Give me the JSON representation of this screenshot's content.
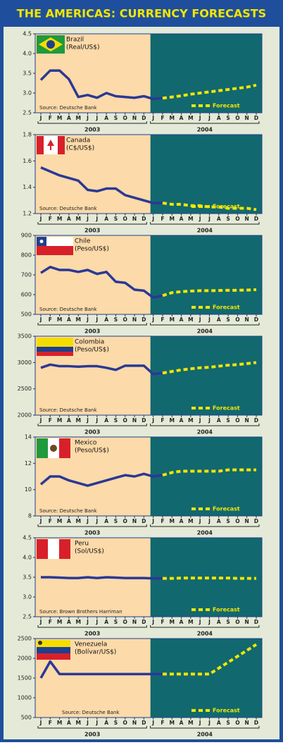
{
  "title": "THE AMERICAS: CURRENCY FORECASTS",
  "chart_data": [
    {
      "type": "line",
      "title": "Brazil",
      "subtitle": "(Real/US$)",
      "source": "Source: Deutsche Bank",
      "categories": [
        "J",
        "F",
        "M",
        "A",
        "M",
        "J",
        "J",
        "A",
        "S",
        "O",
        "N",
        "D",
        "J",
        "F",
        "M",
        "A",
        "M",
        "J",
        "J",
        "A",
        "S",
        "O",
        "N",
        "D"
      ],
      "year_groups": [
        "2003",
        "2004"
      ],
      "ylim": [
        2.5,
        4.5
      ],
      "yticks": [
        2.5,
        {
          "value": 3,
          "label": "3.0"
        },
        3.5,
        {
          "value": 4,
          "label": "4.0"
        },
        4.5
      ],
      "series": [
        {
          "color": "#2a3896",
          "values": [
            3.33,
            3.57,
            3.57,
            3.35,
            2.9,
            2.95,
            2.88,
            3.0,
            2.92,
            2.9,
            2.88,
            2.92,
            2.85,
            2.87,
            null,
            null,
            null,
            null,
            null,
            null,
            null,
            null,
            null,
            null
          ]
        },
        {
          "name": "Forecast",
          "color": "#f2e600",
          "values": [
            null,
            null,
            null,
            null,
            null,
            null,
            null,
            null,
            null,
            null,
            null,
            null,
            null,
            2.87,
            2.9,
            2.93,
            2.97,
            3.0,
            3.03,
            3.06,
            3.09,
            3.12,
            3.15,
            3.2
          ]
        }
      ]
    },
    {
      "type": "line",
      "title": "Canada",
      "subtitle": "(C$/US$)",
      "source": "Source: Deutsche Bank",
      "categories": [
        "J",
        "F",
        "M",
        "A",
        "M",
        "J",
        "J",
        "A",
        "S",
        "O",
        "N",
        "D",
        "J",
        "F",
        "M",
        "A",
        "M",
        "J",
        "J",
        "A",
        "S",
        "O",
        "N",
        "D"
      ],
      "year_groups": [
        "2003",
        "2004"
      ],
      "ylim": [
        1.2,
        1.8
      ],
      "yticks": [
        1.2,
        1.4,
        1.6,
        1.8
      ],
      "series": [
        {
          "color": "#2a3896",
          "values": [
            1.55,
            1.52,
            1.49,
            1.47,
            1.45,
            1.38,
            1.37,
            1.39,
            1.39,
            1.34,
            1.32,
            1.3,
            1.28,
            1.28,
            null,
            null,
            null,
            null,
            null,
            null,
            null,
            null,
            null,
            null
          ]
        },
        {
          "name": "Forecast",
          "color": "#f2e600",
          "values": [
            null,
            null,
            null,
            null,
            null,
            null,
            null,
            null,
            null,
            null,
            null,
            null,
            null,
            1.28,
            1.27,
            1.27,
            1.26,
            1.26,
            1.25,
            1.25,
            1.24,
            1.24,
            1.24,
            1.23
          ]
        }
      ]
    },
    {
      "type": "line",
      "title": "Chile",
      "subtitle": "(Peso/US$)",
      "source": "Source: Deutsche Bank",
      "categories": [
        "J",
        "F",
        "M",
        "A",
        "M",
        "J",
        "J",
        "A",
        "S",
        "O",
        "N",
        "D",
        "J",
        "F",
        "M",
        "A",
        "M",
        "J",
        "J",
        "A",
        "S",
        "O",
        "N",
        "D"
      ],
      "year_groups": [
        "2003",
        "2004"
      ],
      "ylim": [
        500,
        900
      ],
      "yticks": [
        500,
        600,
        700,
        800,
        900
      ],
      "series": [
        {
          "color": "#2a3896",
          "values": [
            710,
            740,
            725,
            725,
            715,
            725,
            705,
            715,
            665,
            660,
            625,
            620,
            585,
            595,
            null,
            null,
            null,
            null,
            null,
            null,
            null,
            null,
            null,
            null
          ]
        },
        {
          "name": "Forecast",
          "color": "#f2e600",
          "values": [
            null,
            null,
            null,
            null,
            null,
            null,
            null,
            null,
            null,
            null,
            null,
            null,
            null,
            595,
            610,
            615,
            618,
            620,
            620,
            621,
            622,
            622,
            623,
            625
          ]
        }
      ]
    },
    {
      "type": "line",
      "title": "Colombia",
      "subtitle": "(Peso/US$)",
      "source": "Source: Deutsche Bank",
      "categories": [
        "J",
        "F",
        "M",
        "A",
        "M",
        "J",
        "J",
        "A",
        "S",
        "O",
        "N",
        "D",
        "J",
        "F",
        "M",
        "A",
        "M",
        "J",
        "J",
        "A",
        "S",
        "O",
        "N",
        "D"
      ],
      "year_groups": [
        "2003",
        "2004"
      ],
      "ylim": [
        2000,
        3500
      ],
      "yticks": [
        2000,
        2500,
        3000,
        3500
      ],
      "series": [
        {
          "color": "#2a3896",
          "values": [
            2900,
            2960,
            2930,
            2930,
            2920,
            2930,
            2930,
            2900,
            2860,
            2940,
            2940,
            2940,
            2780,
            2800,
            null,
            null,
            null,
            null,
            null,
            null,
            null,
            null,
            null,
            null
          ]
        },
        {
          "name": "Forecast",
          "color": "#f2e600",
          "values": [
            null,
            null,
            null,
            null,
            null,
            null,
            null,
            null,
            null,
            null,
            null,
            null,
            null,
            2800,
            2830,
            2860,
            2880,
            2900,
            2910,
            2930,
            2950,
            2960,
            2980,
            3000
          ]
        }
      ]
    },
    {
      "type": "line",
      "title": "Mexico",
      "subtitle": "(Peso/US$)",
      "source": "Source: Deutsche Bank",
      "categories": [
        "J",
        "F",
        "M",
        "A",
        "M",
        "J",
        "J",
        "A",
        "S",
        "O",
        "N",
        "D",
        "J",
        "F",
        "M",
        "A",
        "M",
        "J",
        "J",
        "A",
        "S",
        "O",
        "N",
        "D"
      ],
      "year_groups": [
        "2003",
        "2004"
      ],
      "ylim": [
        8,
        14
      ],
      "yticks": [
        8,
        10,
        12,
        14
      ],
      "series": [
        {
          "color": "#2a3896",
          "values": [
            10.4,
            11.0,
            11.0,
            10.7,
            10.5,
            10.3,
            10.5,
            10.7,
            10.9,
            11.1,
            11.0,
            11.2,
            11.0,
            11.1,
            null,
            null,
            null,
            null,
            null,
            null,
            null,
            null,
            null,
            null
          ]
        },
        {
          "name": "Forecast",
          "color": "#f2e600",
          "values": [
            null,
            null,
            null,
            null,
            null,
            null,
            null,
            null,
            null,
            null,
            null,
            null,
            null,
            11.1,
            11.3,
            11.4,
            11.4,
            11.4,
            11.4,
            11.4,
            11.5,
            11.5,
            11.5,
            11.5
          ]
        }
      ]
    },
    {
      "type": "line",
      "title": "Peru",
      "subtitle": "(Sol/US$)",
      "source": "Source: Brown Brothers Harriman",
      "categories": [
        "J",
        "F",
        "M",
        "A",
        "M",
        "J",
        "J",
        "A",
        "S",
        "O",
        "N",
        "D",
        "J",
        "F",
        "M",
        "A",
        "M",
        "J",
        "J",
        "A",
        "S",
        "O",
        "N",
        "D"
      ],
      "year_groups": [
        "2003",
        "2004"
      ],
      "ylim": [
        2.5,
        4.5
      ],
      "yticks": [
        2.5,
        {
          "value": 3,
          "label": "3.0"
        },
        3.5,
        {
          "value": 4,
          "label": "4.0"
        },
        4.5
      ],
      "series": [
        {
          "color": "#2a3896",
          "values": [
            3.5,
            3.5,
            3.49,
            3.48,
            3.48,
            3.5,
            3.48,
            3.5,
            3.49,
            3.48,
            3.48,
            3.48,
            3.47,
            3.47,
            null,
            null,
            null,
            null,
            null,
            null,
            null,
            null,
            null,
            null
          ]
        },
        {
          "name": "Forecast",
          "color": "#f2e600",
          "values": [
            null,
            null,
            null,
            null,
            null,
            null,
            null,
            null,
            null,
            null,
            null,
            null,
            null,
            3.47,
            3.47,
            3.48,
            3.48,
            3.48,
            3.48,
            3.48,
            3.48,
            3.47,
            3.47,
            3.47
          ]
        }
      ]
    },
    {
      "type": "line",
      "title": "Venezuela",
      "subtitle": "(Bolívar/US$)",
      "source": "Source: Deutsche Bank",
      "categories": [
        "J",
        "F",
        "M",
        "A",
        "M",
        "J",
        "J",
        "A",
        "S",
        "O",
        "N",
        "D",
        "J",
        "F",
        "M",
        "A",
        "M",
        "J",
        "J",
        "A",
        "S",
        "O",
        "N",
        "D"
      ],
      "year_groups": [
        "2003",
        "2004"
      ],
      "ylim": [
        500,
        2500
      ],
      "yticks": [
        500,
        1000,
        1500,
        2000,
        2500
      ],
      "series": [
        {
          "color": "#2a3896",
          "values": [
            1500,
            1920,
            1600,
            1600,
            1600,
            1600,
            1600,
            1600,
            1600,
            1600,
            1600,
            1600,
            1600,
            1600,
            null,
            null,
            null,
            null,
            null,
            null,
            null,
            null,
            null,
            null
          ]
        },
        {
          "name": "Forecast",
          "color": "#f2e600",
          "values": [
            null,
            null,
            null,
            null,
            null,
            null,
            null,
            null,
            null,
            null,
            null,
            null,
            null,
            1600,
            1600,
            1600,
            1600,
            1600,
            1600,
            1750,
            1900,
            2050,
            2200,
            2350
          ]
        }
      ]
    }
  ]
}
